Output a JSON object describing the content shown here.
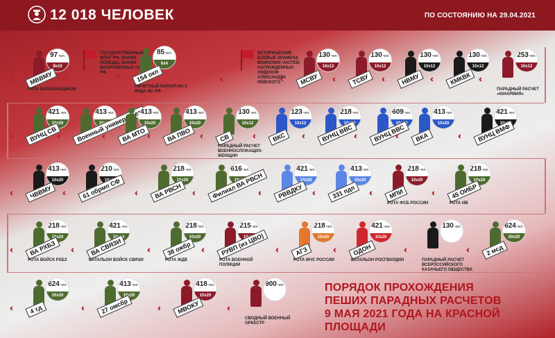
{
  "header": {
    "total": "12 018 ЧЕЛОВЕК",
    "as_of": "ПО СОСТОЯНИЮ НА 29.04.2021"
  },
  "title_lines": [
    "ПОРЯДОК ПРОХОЖДЕНИЯ",
    "ПЕШИХ ПАРАДНЫХ РАСЧЕТОВ",
    "9 МАЯ 2021 ГОДА НА КРАСНОЙ ПЛОЩАДИ"
  ],
  "unit_suffix": "чел.",
  "colors": {
    "header_bg": "#8d1820",
    "title_red": "#b0151e",
    "maroon": "#8c1b2a",
    "green": "#4e6b2f",
    "black": "#1a1a1a",
    "blue": "#2d57c8",
    "lightblue": "#5b86e5",
    "red": "#d0262d",
    "orange": "#e3782d",
    "gray": "#666666"
  },
  "units": [
    {
      "label": "МВВМУ",
      "count": "97",
      "formation": "9x10",
      "caption": "РОТА БАРАБАНЩИКОВ",
      "color": "maroon"
    },
    {
      "label": "",
      "count": "",
      "formation": "",
      "caption": "ГОСУДАРСТВЕННЫЙ ФЛАГ РФ, ЗНАМЯ ПОБЕДЫ, ЗНАМЯ ВООРУЖЕННЫХ СИЛ РФ",
      "color": "red"
    },
    {
      "label": "154 окп",
      "count": "85",
      "formation": "6x4",
      "caption": "ПОЧЕТНЫЙ КАРАУЛ НА 3 ВИДА ВС РФ",
      "color": "green"
    },
    {
      "label": "",
      "count": "",
      "formation": "",
      "caption": "ИСТОРИЧЕСКИЕ БОЕВЫЕ ЗНАМЕНА ВОИНСКИХ ЧАСТЕЙ, НАГРАЖДЕННЫХ ОРДЕНОМ АЛЕКСАНДРА НЕВСКОГО",
      "color": "red"
    },
    {
      "label": "МСВУ",
      "count": "130",
      "formation": "10x12",
      "caption": "",
      "color": "maroon"
    },
    {
      "label": "ТСВУ",
      "count": "130",
      "formation": "10x12",
      "caption": "",
      "color": "maroon"
    },
    {
      "label": "НВМУ",
      "count": "130",
      "formation": "10x12",
      "caption": "",
      "color": "black"
    },
    {
      "label": "КМКВК",
      "count": "130",
      "formation": "10x12",
      "caption": "",
      "color": "black"
    },
    {
      "label": "",
      "count": "253",
      "formation": "10x12",
      "caption": "ПАРАДНЫЙ РАСЧЕТ «ЮНАРМИЯ»",
      "color": "maroon"
    },
    {
      "label": "ВУНЦ СВ",
      "count": "421",
      "formation": "10x20",
      "caption": "",
      "color": "green"
    },
    {
      "label": "Военный университет",
      "count": "413",
      "formation": "10x20",
      "caption": "",
      "color": "green"
    },
    {
      "label": "ВА МТО",
      "count": "413",
      "formation": "10x20",
      "caption": "",
      "color": "green"
    },
    {
      "label": "ВА ПВО",
      "count": "413",
      "formation": "10x20",
      "caption": "",
      "color": "green"
    },
    {
      "label": "СВ",
      "count": "130",
      "formation": "10x12",
      "caption": "ПАРАДНЫЙ РАСЧЕТ ВОЕННОСЛУЖАЩИХ-ЖЕНЩИН",
      "color": "green"
    },
    {
      "label": "ВКС",
      "count": "123",
      "formation": "10x12",
      "caption": "",
      "color": "blue"
    },
    {
      "label": "ВУНЦ ВВС",
      "count": "218",
      "formation": "10x20",
      "caption": "",
      "color": "blue"
    },
    {
      "label": "ВУНЦ ВВС",
      "count": "609",
      "formation": "10x20",
      "caption": "",
      "color": "blue"
    },
    {
      "label": "ВКА",
      "count": "413",
      "formation": "10x20",
      "caption": "",
      "color": "blue"
    },
    {
      "label": "ВУНЦ ВМФ",
      "count": "421",
      "formation": "10x20",
      "caption": "",
      "color": "black"
    },
    {
      "label": "ЧВВМУ",
      "count": "413",
      "formation": "10x20",
      "caption": "",
      "color": "black"
    },
    {
      "label": "61 обрмп СФ",
      "count": "210",
      "formation": "10x20",
      "caption": "",
      "color": "black"
    },
    {
      "label": "ВА РВСН",
      "count": "218",
      "formation": "10x20",
      "caption": "",
      "color": "green"
    },
    {
      "label": "Филиал ВА РВСН",
      "count": "616",
      "formation": "10x20",
      "caption": "",
      "color": "green"
    },
    {
      "label": "РВВДКУ",
      "count": "421",
      "formation": "10x20",
      "caption": "",
      "color": "lightblue"
    },
    {
      "label": "331 пдп",
      "count": "413",
      "formation": "10x20",
      "caption": "",
      "color": "lightblue"
    },
    {
      "label": "МПИ",
      "count": "218",
      "formation": "10x20",
      "caption": "РОТА ФСБ РОССИИ",
      "color": "maroon"
    },
    {
      "label": "45 ОИБР",
      "count": "218",
      "formation": "10x20",
      "caption": "РОТА ИВ",
      "color": "green"
    },
    {
      "label": "ВА РХБЗ",
      "count": "218",
      "formation": "10x20",
      "caption": "РОТА ВОЙСК РХБЗ",
      "color": "green"
    },
    {
      "label": "ВА СВЯЗИ",
      "count": "421",
      "formation": "10x20",
      "caption": "БАТАЛЬОН ВОЙСК СВЯЗИ",
      "color": "green"
    },
    {
      "label": "38 ожбр",
      "count": "218",
      "formation": "10x20",
      "caption": "РОТА ЖДВ",
      "color": "green"
    },
    {
      "label": "РУВП (из ЦВО)",
      "count": "215",
      "formation": "10x20",
      "caption": "РОТА ВОЕННОЙ ПОЛИЦИИ",
      "color": "maroon"
    },
    {
      "label": "АГЗ",
      "count": "218",
      "formation": "10x20",
      "caption": "РОТА МЧС РОССИИ",
      "color": "orange"
    },
    {
      "label": "ОДОН",
      "count": "421",
      "formation": "10x20",
      "caption": "БАТАЛЬОН РОСГВАРДИИ",
      "color": "red"
    },
    {
      "label": "",
      "count": "130",
      "formation": "",
      "caption": "ПАРАДНЫЙ РАСЧЕТ ВСЕРОССИЙСКОГО КАЗАЧЬЕГО ОБЩЕСТВА",
      "color": "black"
    },
    {
      "label": "2 мсд",
      "count": "624",
      "formation": "20x20",
      "caption": "",
      "color": "green"
    },
    {
      "label": "4 тд",
      "count": "624",
      "formation": "20x20",
      "caption": "",
      "color": "green"
    },
    {
      "label": "27 омсбр",
      "count": "413",
      "formation": "10x20",
      "caption": "",
      "color": "green"
    },
    {
      "label": "МВОКУ",
      "count": "418",
      "formation": "10x20",
      "caption": "",
      "color": "maroon"
    },
    {
      "label": "",
      "count": "900",
      "formation": "",
      "caption": "СВОДНЫЙ ВОЕННЫЙ ОРКЕСТР",
      "color": "maroon"
    }
  ]
}
